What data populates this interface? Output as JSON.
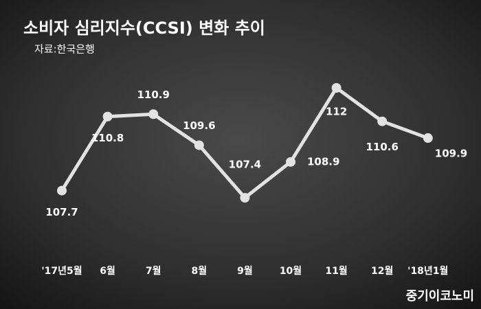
{
  "chart_data": {
    "type": "line",
    "title": "소비자 심리지수(CCSI) 변화 추이",
    "source": "자료:한국은행",
    "watermark": "중기이코노미",
    "categories": [
      "'17년5월",
      "6월",
      "7월",
      "8월",
      "9월",
      "10월",
      "11월",
      "12월",
      "'18년1월"
    ],
    "values": [
      107.7,
      110.8,
      110.9,
      109.6,
      107.4,
      108.9,
      112,
      110.6,
      109.9
    ],
    "color": "#e2e2e2"
  }
}
